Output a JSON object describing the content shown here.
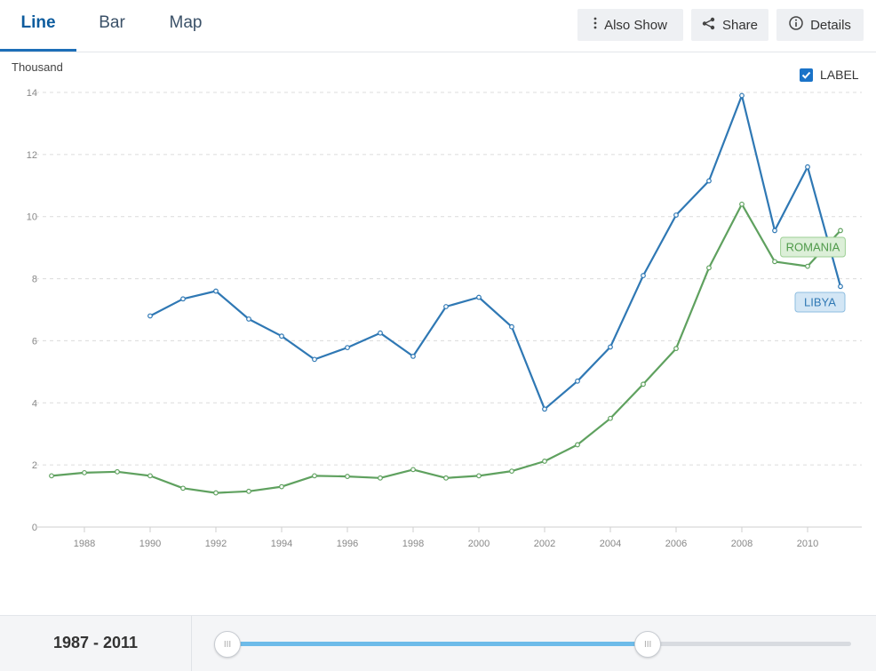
{
  "tabs": [
    {
      "label": "Line",
      "active": true
    },
    {
      "label": "Bar",
      "active": false
    },
    {
      "label": "Map",
      "active": false
    }
  ],
  "toolbar": {
    "also_show_label": "Also Show",
    "share_label": "Share",
    "details_label": "Details"
  },
  "label_toggle": {
    "label": "LABEL",
    "checked": true
  },
  "colors": {
    "libya": "#2f78b4",
    "romania": "#5fa15f",
    "accent": "#1d6fb8"
  },
  "chart_data": {
    "type": "line",
    "ylabel": "Thousand",
    "ylim": [
      0,
      14
    ],
    "yticks": [
      0,
      2,
      4,
      6,
      8,
      10,
      12,
      14
    ],
    "xlim": [
      1987,
      2011
    ],
    "xticks": [
      1988,
      1990,
      1992,
      1994,
      1996,
      1998,
      2000,
      2002,
      2004,
      2006,
      2008,
      2010
    ],
    "grid": true,
    "series": [
      {
        "name": "LIBYA",
        "x": [
          1990,
          1991,
          1992,
          1993,
          1994,
          1995,
          1996,
          1997,
          1998,
          1999,
          2000,
          2001,
          2002,
          2003,
          2004,
          2005,
          2006,
          2007,
          2008,
          2009,
          2010,
          2011
        ],
        "values": [
          6.8,
          7.35,
          7.6,
          6.7,
          6.15,
          5.4,
          5.78,
          6.25,
          5.5,
          7.1,
          7.4,
          6.45,
          3.8,
          4.7,
          5.8,
          8.1,
          10.05,
          11.15,
          13.9,
          9.55,
          11.6,
          7.75
        ]
      },
      {
        "name": "ROMANIA",
        "x": [
          1987,
          1988,
          1989,
          1990,
          1991,
          1992,
          1993,
          1994,
          1995,
          1996,
          1997,
          1998,
          1999,
          2000,
          2001,
          2002,
          2003,
          2004,
          2005,
          2006,
          2007,
          2008,
          2009,
          2010,
          2011
        ],
        "values": [
          1.65,
          1.75,
          1.78,
          1.65,
          1.25,
          1.1,
          1.15,
          1.3,
          1.65,
          1.63,
          1.58,
          1.85,
          1.58,
          1.65,
          1.8,
          2.12,
          2.65,
          3.5,
          4.6,
          5.75,
          8.35,
          10.4,
          8.55,
          8.4,
          9.55
        ]
      }
    ]
  },
  "footer": {
    "range_label": "1987 - 2011",
    "slider_handle_glyph": "III",
    "slider": {
      "start_fraction": 0.0,
      "end_fraction": 0.673
    }
  }
}
